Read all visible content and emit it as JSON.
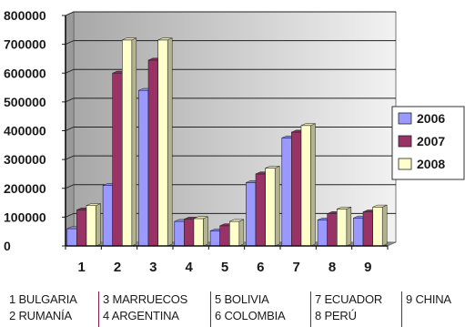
{
  "chart_data": {
    "type": "bar",
    "categories": [
      "1",
      "2",
      "3",
      "4",
      "5",
      "6",
      "7",
      "8",
      "9"
    ],
    "series": [
      {
        "name": "2006",
        "color": "#9999ff",
        "values": [
          60000,
          210000,
          540000,
          85000,
          52000,
          220000,
          375000,
          90000,
          97000
        ]
      },
      {
        "name": "2007",
        "color": "#993366",
        "values": [
          125000,
          600000,
          645000,
          93000,
          70000,
          250000,
          395000,
          112000,
          118000
        ]
      },
      {
        "name": "2008",
        "color": "#ffffcc",
        "values": [
          140000,
          715000,
          715000,
          95000,
          85000,
          270000,
          418000,
          128000,
          135000
        ]
      }
    ],
    "ylim": [
      0,
      800000
    ],
    "yticks": [
      "0",
      "100000",
      "200000",
      "300000",
      "400000",
      "500000",
      "600000",
      "700000",
      "800000"
    ],
    "grid": true,
    "legend_position": "right"
  },
  "countries": [
    [
      "1 BULGARIA",
      "2 RUMANÍA"
    ],
    [
      "3 MARRUECOS",
      "4 ARGENTINA"
    ],
    [
      "5 BOLIVIA",
      "6 COLOMBIA"
    ],
    [
      "7 ECUADOR",
      "8 PERÚ"
    ],
    [
      "9 CHINA"
    ]
  ]
}
